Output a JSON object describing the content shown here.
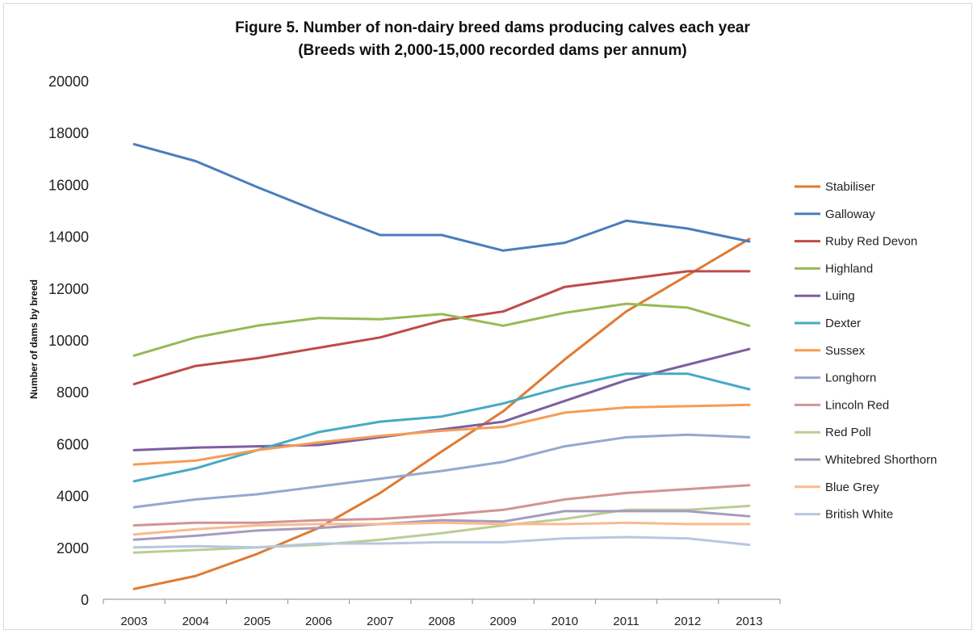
{
  "chart_data": {
    "type": "line",
    "title": "Figure 5. Number of non-dairy breed dams producing calves each year",
    "subtitle": "(Breeds with 2,000-15,000 recorded dams per annum)",
    "ylabel": "Number of dams by breed",
    "xlabel": "",
    "x": [
      "2003",
      "2004",
      "2005",
      "2006",
      "2007",
      "2008",
      "2009",
      "2010",
      "2011",
      "2012",
      "2013"
    ],
    "ylim": [
      0,
      20000
    ],
    "yticks": [
      "0",
      "2000",
      "4000",
      "6000",
      "8000",
      "10000",
      "12000",
      "14000",
      "16000",
      "18000",
      "20000"
    ],
    "grid": false,
    "legend_position": "right",
    "series": [
      {
        "name": "Stabiliser",
        "color": "#E07A30",
        "values": [
          400,
          900,
          1750,
          2750,
          4100,
          5700,
          7250,
          9250,
          11100,
          12500,
          13900
        ]
      },
      {
        "name": "Galloway",
        "color": "#4A7EBB",
        "values": [
          17550,
          16900,
          15900,
          14950,
          14050,
          14050,
          13450,
          13750,
          14600,
          14300,
          13800
        ]
      },
      {
        "name": "Ruby Red Devon",
        "color": "#BE4B48",
        "values": [
          8300,
          9000,
          9300,
          9700,
          10100,
          10750,
          11100,
          12050,
          12350,
          12650,
          12650
        ]
      },
      {
        "name": "Highland",
        "color": "#98B954",
        "values": [
          9400,
          10100,
          10550,
          10850,
          10800,
          11000,
          10550,
          11050,
          11400,
          11250,
          10550
        ]
      },
      {
        "name": "Luing",
        "color": "#7D5FA0",
        "values": [
          5750,
          5850,
          5900,
          5950,
          6250,
          6550,
          6850,
          7650,
          8450,
          9050,
          9650
        ]
      },
      {
        "name": "Dexter",
        "color": "#46AAC5",
        "values": [
          4550,
          5050,
          5750,
          6450,
          6850,
          7050,
          7550,
          8200,
          8700,
          8700,
          8100
        ]
      },
      {
        "name": "Sussex",
        "color": "#F59D56",
        "values": [
          5200,
          5350,
          5750,
          6050,
          6300,
          6500,
          6650,
          7200,
          7400,
          7450,
          7500
        ]
      },
      {
        "name": "Longhorn",
        "color": "#93A9D0",
        "values": [
          3550,
          3850,
          4050,
          4350,
          4650,
          4950,
          5300,
          5900,
          6250,
          6350,
          6250
        ]
      },
      {
        "name": "Lincoln Red",
        "color": "#D29493",
        "values": [
          2850,
          2950,
          2950,
          3050,
          3100,
          3250,
          3450,
          3850,
          4100,
          4250,
          4400
        ]
      },
      {
        "name": "Red Poll",
        "color": "#B9CE92",
        "values": [
          1800,
          1900,
          2000,
          2100,
          2300,
          2550,
          2850,
          3100,
          3450,
          3450,
          3600
        ]
      },
      {
        "name": "Whitebred Shorthorn",
        "color": "#A89BBD",
        "values": [
          2300,
          2450,
          2650,
          2750,
          2900,
          3050,
          3000,
          3400,
          3400,
          3400,
          3200
        ]
      },
      {
        "name": "Blue Grey",
        "color": "#F9BB8E",
        "values": [
          2500,
          2700,
          2850,
          2900,
          2900,
          2950,
          2900,
          2900,
          2950,
          2900,
          2900
        ]
      },
      {
        "name": "British White",
        "color": "#B7C7E0",
        "values": [
          2000,
          2050,
          2000,
          2150,
          2150,
          2200,
          2200,
          2350,
          2400,
          2350,
          2100
        ]
      }
    ]
  }
}
